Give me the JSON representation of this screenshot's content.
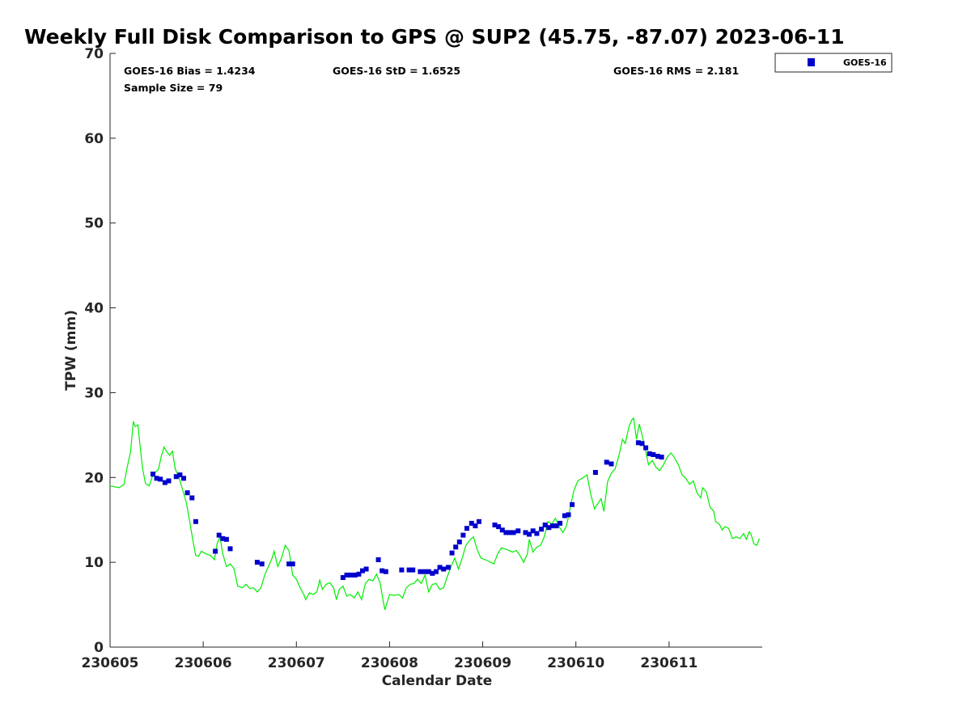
{
  "chart_data": {
    "type": "scatter",
    "title": "Weekly Full Disk Comparison to GPS @ SUP2 (45.75, -87.07) 2023-06-11",
    "xlabel": "Calendar Date",
    "ylabel": "TPW (mm)",
    "xlim": [
      230605,
      230612
    ],
    "ylim": [
      0,
      70
    ],
    "x_ticks": [
      230605,
      230606,
      230607,
      230608,
      230609,
      230610,
      230611
    ],
    "x_tick_labels": [
      "230605",
      "230606",
      "230607",
      "230608",
      "230609",
      "230610",
      "230611"
    ],
    "y_ticks": [
      0,
      10,
      20,
      30,
      40,
      50,
      60,
      70
    ],
    "y_tick_labels": [
      "0",
      "10",
      "20",
      "30",
      "40",
      "50",
      "60",
      "70"
    ],
    "grid": false,
    "legend": {
      "placement": "top-right-outside",
      "entries": [
        "GOES-16"
      ]
    },
    "annotations": {
      "bias": "GOES-16 Bias = 1.4234",
      "sample_size": "Sample Size = 79",
      "std": "GOES-16 StD = 1.6525",
      "rms": "GOES-16 RMS = 2.181"
    },
    "series": [
      {
        "name": "GOES-16",
        "kind": "scatter",
        "marker": "square",
        "color": "#0000cc",
        "points": [
          [
            230605.46,
            20.4
          ],
          [
            230605.5,
            19.9
          ],
          [
            230605.54,
            19.8
          ],
          [
            230605.59,
            19.4
          ],
          [
            230605.63,
            19.6
          ],
          [
            230605.71,
            20.1
          ],
          [
            230605.75,
            20.3
          ],
          [
            230605.79,
            19.9
          ],
          [
            230605.83,
            18.2
          ],
          [
            230605.88,
            17.6
          ],
          [
            230605.92,
            14.8
          ],
          [
            230606.13,
            11.3
          ],
          [
            230606.17,
            13.2
          ],
          [
            230606.21,
            12.8
          ],
          [
            230606.25,
            12.7
          ],
          [
            230606.29,
            11.6
          ],
          [
            230606.58,
            10.0
          ],
          [
            230606.63,
            9.8
          ],
          [
            230606.92,
            9.8
          ],
          [
            230606.96,
            9.8
          ],
          [
            230607.5,
            8.2
          ],
          [
            230607.54,
            8.5
          ],
          [
            230607.58,
            8.5
          ],
          [
            230607.63,
            8.5
          ],
          [
            230607.67,
            8.6
          ],
          [
            230607.71,
            9.0
          ],
          [
            230607.75,
            9.2
          ],
          [
            230607.88,
            10.3
          ],
          [
            230607.92,
            9.0
          ],
          [
            230607.96,
            8.9
          ],
          [
            230608.13,
            9.1
          ],
          [
            230608.21,
            9.1
          ],
          [
            230608.25,
            9.1
          ],
          [
            230608.33,
            8.9
          ],
          [
            230608.38,
            8.9
          ],
          [
            230608.42,
            8.9
          ],
          [
            230608.46,
            8.7
          ],
          [
            230608.5,
            8.9
          ],
          [
            230608.54,
            9.4
          ],
          [
            230608.58,
            9.2
          ],
          [
            230608.63,
            9.4
          ],
          [
            230608.67,
            11.1
          ],
          [
            230608.71,
            11.8
          ],
          [
            230608.75,
            12.4
          ],
          [
            230608.79,
            13.2
          ],
          [
            230608.83,
            14.0
          ],
          [
            230608.88,
            14.6
          ],
          [
            230608.92,
            14.3
          ],
          [
            230608.96,
            14.8
          ],
          [
            230609.13,
            14.4
          ],
          [
            230609.17,
            14.2
          ],
          [
            230609.21,
            13.8
          ],
          [
            230609.25,
            13.5
          ],
          [
            230609.29,
            13.5
          ],
          [
            230609.33,
            13.5
          ],
          [
            230609.38,
            13.7
          ],
          [
            230609.46,
            13.5
          ],
          [
            230609.5,
            13.3
          ],
          [
            230609.54,
            13.7
          ],
          [
            230609.58,
            13.4
          ],
          [
            230609.63,
            13.9
          ],
          [
            230609.67,
            14.4
          ],
          [
            230609.71,
            14.1
          ],
          [
            230609.75,
            14.3
          ],
          [
            230609.79,
            14.3
          ],
          [
            230609.83,
            14.6
          ],
          [
            230609.88,
            15.5
          ],
          [
            230609.92,
            15.6
          ],
          [
            230609.96,
            16.8
          ],
          [
            230610.21,
            20.6
          ],
          [
            230610.33,
            21.8
          ],
          [
            230610.38,
            21.6
          ],
          [
            230610.67,
            24.1
          ],
          [
            230610.71,
            24.0
          ],
          [
            230610.75,
            23.5
          ],
          [
            230610.79,
            22.8
          ],
          [
            230610.83,
            22.7
          ],
          [
            230610.88,
            22.5
          ],
          [
            230610.92,
            22.4
          ]
        ]
      },
      {
        "kind": "line",
        "color": "#00ee00",
        "points": [
          [
            230605.0,
            19.0
          ],
          [
            230605.05,
            18.9
          ],
          [
            230605.1,
            18.8
          ],
          [
            230605.15,
            19.2
          ],
          [
            230605.18,
            21.0
          ],
          [
            230605.22,
            23.0
          ],
          [
            230605.25,
            26.6
          ],
          [
            230605.27,
            26.0
          ],
          [
            230605.3,
            26.2
          ],
          [
            230605.32,
            24.0
          ],
          [
            230605.35,
            21.0
          ],
          [
            230605.38,
            19.3
          ],
          [
            230605.42,
            19.0
          ],
          [
            230605.45,
            20.0
          ],
          [
            230605.48,
            20.5
          ],
          [
            230605.52,
            21.0
          ],
          [
            230605.55,
            22.5
          ],
          [
            230605.58,
            23.6
          ],
          [
            230605.61,
            23.0
          ],
          [
            230605.64,
            22.6
          ],
          [
            230605.67,
            23.1
          ],
          [
            230605.7,
            21.0
          ],
          [
            230605.74,
            20.0
          ],
          [
            230605.78,
            18.5
          ],
          [
            230605.82,
            17.0
          ],
          [
            230605.86,
            14.5
          ],
          [
            230605.89,
            12.5
          ],
          [
            230605.92,
            10.8
          ],
          [
            230605.95,
            10.7
          ],
          [
            230605.98,
            11.3
          ],
          [
            230606.03,
            11.0
          ],
          [
            230606.08,
            10.8
          ],
          [
            230606.12,
            10.3
          ],
          [
            230606.15,
            12.2
          ],
          [
            230606.18,
            13.0
          ],
          [
            230606.21,
            11.0
          ],
          [
            230606.25,
            9.5
          ],
          [
            230606.29,
            9.8
          ],
          [
            230606.33,
            9.3
          ],
          [
            230606.37,
            7.2
          ],
          [
            230606.42,
            7.0
          ],
          [
            230606.46,
            7.4
          ],
          [
            230606.5,
            6.9
          ],
          [
            230606.54,
            7.0
          ],
          [
            230606.58,
            6.5
          ],
          [
            230606.62,
            7.0
          ],
          [
            230606.66,
            8.5
          ],
          [
            230606.7,
            9.5
          ],
          [
            230606.74,
            10.5
          ],
          [
            230606.76,
            11.3
          ],
          [
            230606.8,
            9.5
          ],
          [
            230606.84,
            10.5
          ],
          [
            230606.88,
            12.0
          ],
          [
            230606.92,
            11.4
          ],
          [
            230606.96,
            8.5
          ],
          [
            230607.0,
            8.0
          ],
          [
            230607.04,
            7.0
          ],
          [
            230607.08,
            6.2
          ],
          [
            230607.1,
            5.6
          ],
          [
            230607.14,
            6.4
          ],
          [
            230607.18,
            6.2
          ],
          [
            230607.22,
            6.5
          ],
          [
            230607.25,
            7.9
          ],
          [
            230607.28,
            6.8
          ],
          [
            230607.32,
            7.4
          ],
          [
            230607.36,
            7.6
          ],
          [
            230607.4,
            7.0
          ],
          [
            230607.43,
            5.6
          ],
          [
            230607.46,
            6.8
          ],
          [
            230607.5,
            7.2
          ],
          [
            230607.54,
            6.0
          ],
          [
            230607.58,
            6.2
          ],
          [
            230607.62,
            5.8
          ],
          [
            230607.66,
            6.5
          ],
          [
            230607.7,
            5.6
          ],
          [
            230607.74,
            7.5
          ],
          [
            230607.78,
            8.0
          ],
          [
            230607.82,
            7.8
          ],
          [
            230607.86,
            8.6
          ],
          [
            230607.9,
            7.5
          ],
          [
            230607.93,
            5.5
          ],
          [
            230607.95,
            4.4
          ],
          [
            230608.0,
            6.2
          ],
          [
            230608.05,
            6.1
          ],
          [
            230608.1,
            6.2
          ],
          [
            230608.14,
            5.8
          ],
          [
            230608.18,
            7.0
          ],
          [
            230608.22,
            7.4
          ],
          [
            230608.26,
            7.5
          ],
          [
            230608.3,
            8.0
          ],
          [
            230608.34,
            7.5
          ],
          [
            230608.38,
            8.5
          ],
          [
            230608.42,
            6.5
          ],
          [
            230608.46,
            7.4
          ],
          [
            230608.5,
            7.5
          ],
          [
            230608.54,
            6.8
          ],
          [
            230608.58,
            7.0
          ],
          [
            230608.62,
            8.3
          ],
          [
            230608.66,
            9.5
          ],
          [
            230608.7,
            10.5
          ],
          [
            230608.74,
            9.2
          ],
          [
            230608.78,
            10.5
          ],
          [
            230608.82,
            12.0
          ],
          [
            230608.86,
            12.6
          ],
          [
            230608.9,
            13.0
          ],
          [
            230608.94,
            11.5
          ],
          [
            230608.98,
            10.5
          ],
          [
            230609.05,
            10.2
          ],
          [
            230609.12,
            9.8
          ],
          [
            230609.16,
            11.0
          ],
          [
            230609.2,
            11.7
          ],
          [
            230609.26,
            11.5
          ],
          [
            230609.32,
            11.2
          ],
          [
            230609.36,
            11.4
          ],
          [
            230609.4,
            10.8
          ],
          [
            230609.44,
            10.0
          ],
          [
            230609.48,
            11.0
          ],
          [
            230609.5,
            12.7
          ],
          [
            230609.54,
            11.2
          ],
          [
            230609.58,
            11.8
          ],
          [
            230609.62,
            12.0
          ],
          [
            230609.66,
            13.0
          ],
          [
            230609.7,
            14.8
          ],
          [
            230609.74,
            14.5
          ],
          [
            230609.78,
            15.2
          ],
          [
            230609.82,
            14.2
          ],
          [
            230609.86,
            13.5
          ],
          [
            230609.9,
            14.3
          ],
          [
            230609.94,
            16.5
          ],
          [
            230609.98,
            18.5
          ],
          [
            230610.02,
            19.6
          ],
          [
            230610.08,
            20.0
          ],
          [
            230610.12,
            20.3
          ],
          [
            230610.16,
            18.0
          ],
          [
            230610.2,
            16.3
          ],
          [
            230610.24,
            17.0
          ],
          [
            230610.27,
            17.5
          ],
          [
            230610.3,
            16.0
          ],
          [
            230610.34,
            19.5
          ],
          [
            230610.38,
            20.5
          ],
          [
            230610.42,
            21.0
          ],
          [
            230610.46,
            22.5
          ],
          [
            230610.5,
            24.5
          ],
          [
            230610.53,
            24.0
          ],
          [
            230610.57,
            26.0
          ],
          [
            230610.6,
            26.8
          ],
          [
            230610.62,
            27.0
          ],
          [
            230610.65,
            24.5
          ],
          [
            230610.68,
            26.3
          ],
          [
            230610.71,
            25.0
          ],
          [
            230610.75,
            23.0
          ],
          [
            230610.78,
            21.5
          ],
          [
            230610.82,
            22.0
          ],
          [
            230610.86,
            21.2
          ],
          [
            230610.9,
            20.8
          ],
          [
            230610.94,
            21.5
          ],
          [
            230610.98,
            22.4
          ],
          [
            230611.02,
            22.9
          ],
          [
            230611.06,
            22.3
          ],
          [
            230611.1,
            21.5
          ],
          [
            230611.14,
            20.3
          ],
          [
            230611.18,
            19.9
          ],
          [
            230611.22,
            19.2
          ],
          [
            230611.26,
            19.6
          ],
          [
            230611.3,
            18.2
          ],
          [
            230611.34,
            17.6
          ],
          [
            230611.36,
            18.8
          ],
          [
            230611.4,
            18.3
          ],
          [
            230611.44,
            16.5
          ],
          [
            230611.48,
            16.0
          ],
          [
            230611.5,
            14.8
          ],
          [
            230611.54,
            14.5
          ],
          [
            230611.57,
            13.8
          ],
          [
            230611.6,
            14.2
          ],
          [
            230611.64,
            14.0
          ],
          [
            230611.68,
            12.8
          ],
          [
            230611.72,
            13.0
          ],
          [
            230611.76,
            12.8
          ],
          [
            230611.8,
            13.4
          ],
          [
            230611.83,
            12.7
          ],
          [
            230611.86,
            13.6
          ],
          [
            230611.88,
            13.3
          ],
          [
            230611.91,
            12.2
          ],
          [
            230611.94,
            12.0
          ],
          [
            230611.97,
            12.8
          ]
        ]
      }
    ]
  }
}
